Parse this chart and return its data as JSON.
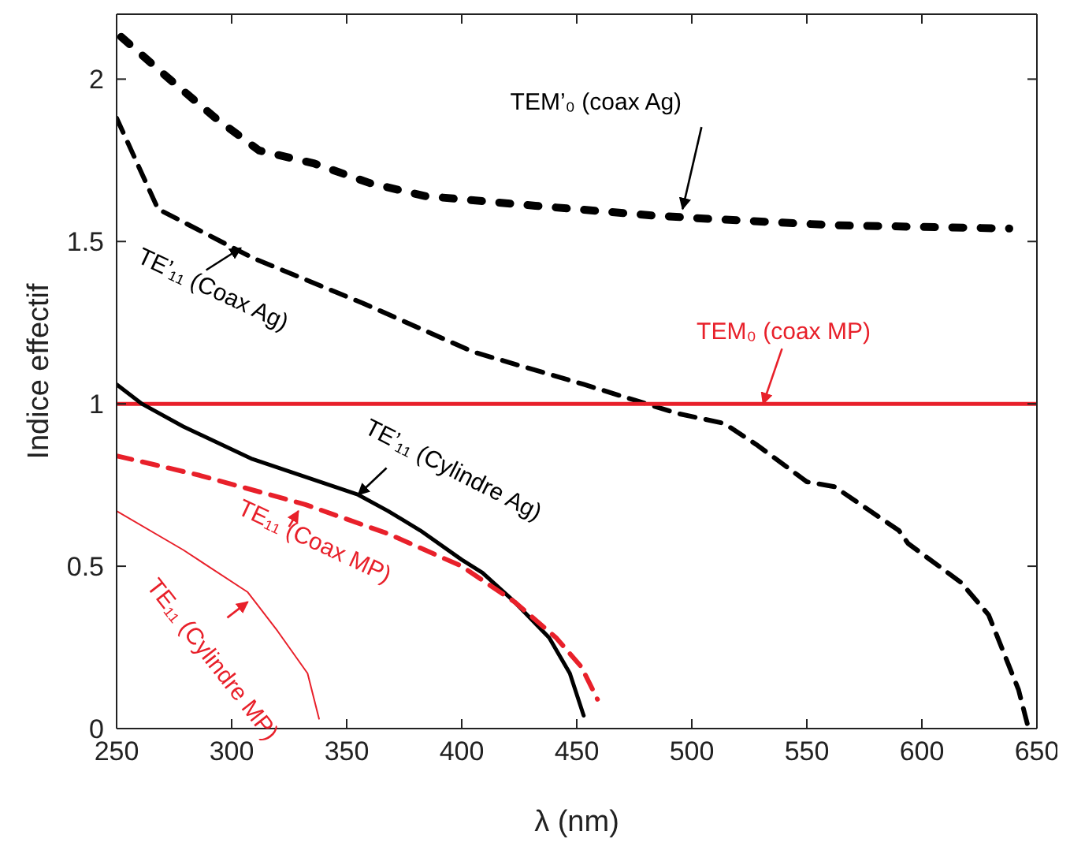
{
  "chart_data": {
    "type": "line",
    "xlabel": "λ (nm)",
    "ylabel": "Indice effectif",
    "xlim": [
      250,
      650
    ],
    "xticks": [
      250,
      300,
      350,
      400,
      450,
      500,
      550,
      600,
      650
    ],
    "ylim": [
      0,
      2.2
    ],
    "yticks": [
      0,
      0.5,
      1,
      1.5,
      2
    ],
    "marker": "none",
    "series": [
      {
        "color": "#000000",
        "line_style": "dotted",
        "x": [
          252,
          273,
          293,
          312,
          336,
          360,
          384,
          408,
          432,
          483,
          507,
          562,
          638
        ],
        "values": [
          2.13,
          2.0,
          1.88,
          1.78,
          1.74,
          1.68,
          1.64,
          1.625,
          1.61,
          1.58,
          1.57,
          1.55,
          1.54
        ]
      },
      {
        "color": "#000000",
        "line_style": "dashed",
        "x": [
          250,
          268,
          309,
          357,
          405,
          453,
          494,
          514,
          528,
          550,
          562,
          590,
          594,
          617,
          629,
          642,
          646
        ],
        "values": [
          1.88,
          1.6,
          1.45,
          1.31,
          1.16,
          1.06,
          0.97,
          0.94,
          0.875,
          0.76,
          0.745,
          0.61,
          0.57,
          0.45,
          0.35,
          0.12,
          0.01
        ]
      },
      {
        "color": "#e8202a",
        "line_style": "solid",
        "x": [
          250,
          650
        ],
        "values": [
          1,
          1
        ]
      },
      {
        "color": "#000000",
        "line_style": "solid",
        "x": [
          250,
          261,
          279,
          309,
          355,
          368,
          382,
          400,
          409,
          423,
          438,
          447,
          453
        ],
        "values": [
          1.06,
          1.0,
          0.93,
          0.83,
          0.72,
          0.67,
          0.61,
          0.52,
          0.48,
          0.39,
          0.28,
          0.17,
          0.04
        ]
      },
      {
        "color": "#e8202a",
        "line_style": "dashed",
        "x": [
          250,
          286,
          332,
          368,
          400,
          423,
          441,
          452,
          459
        ],
        "values": [
          0.84,
          0.78,
          0.69,
          0.6,
          0.5,
          0.39,
          0.28,
          0.19,
          0.09
        ]
      },
      {
        "color": "#e8202a",
        "line_style": "solid",
        "x": [
          250,
          279,
          307,
          320,
          333,
          338
        ],
        "values": [
          0.67,
          0.55,
          0.42,
          0.3,
          0.17,
          0.03
        ]
      }
    ],
    "annotations": [
      {
        "text": "TEM’₀ (coax Ag)",
        "x": 496,
        "y": 1.6
      },
      {
        "text": "TE’₁₁ (Coax Ag)",
        "x": 304,
        "y": 1.48
      },
      {
        "text": "TEM₀ (coax MP)",
        "x": 531,
        "y": 1
      },
      {
        "text": "TE’₁₁ (Cylindre Ag)",
        "x": 355,
        "y": 0.72
      },
      {
        "text": "TE₁₁ (Coax MP)",
        "x": 329,
        "y": 0.67
      },
      {
        "text": "TE₁₁ (Cylindre MP)",
        "x": 307,
        "y": 0.39
      }
    ]
  }
}
